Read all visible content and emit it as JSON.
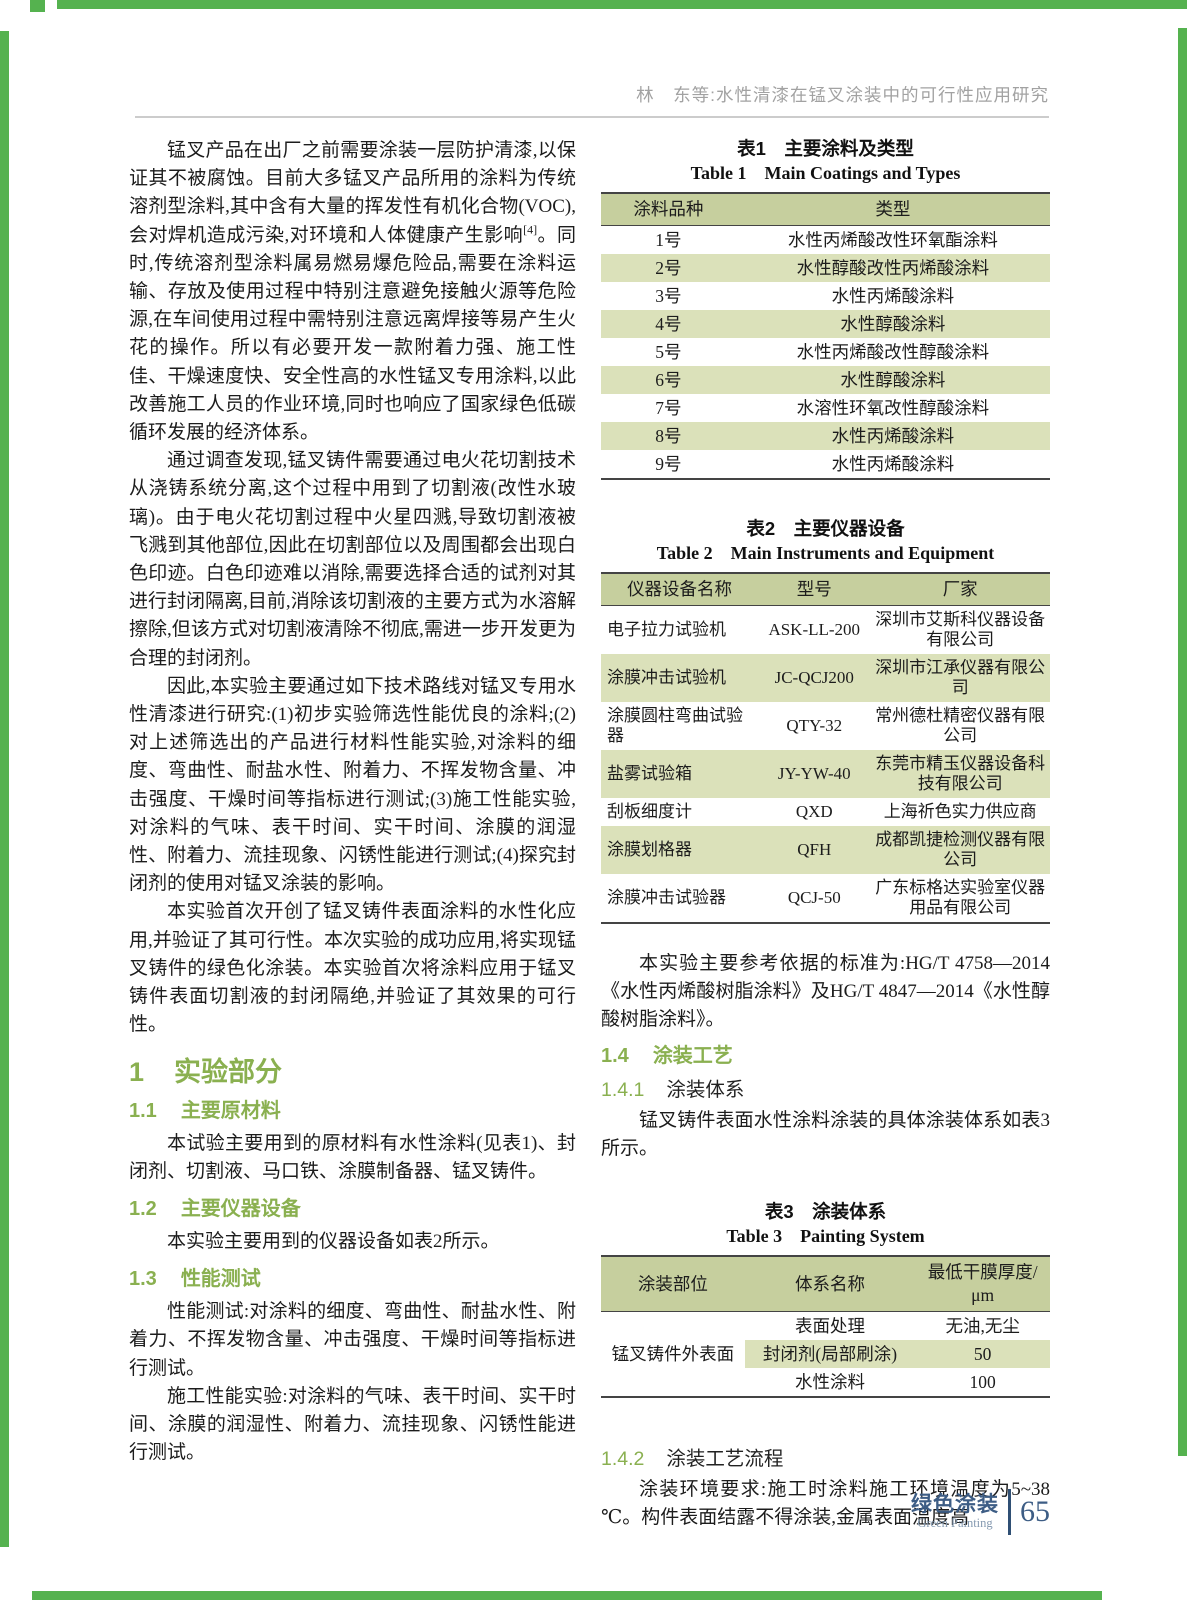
{
  "header": {
    "running_title": "林　东等:水性清漆在锰叉涂装中的可行性应用研究"
  },
  "footer": {
    "journal_cn": "绿色涂装",
    "journal_en": "Green Painting",
    "page_number": "65"
  },
  "colors": {
    "accent_green": "#8ab050",
    "table_header_bg": "#c6cf9e",
    "table_stripe_bg": "#dbe1ba",
    "frame_green": "#55b24f",
    "footer_blue": "#3d5d85"
  },
  "left_column": {
    "p1a": "锰叉产品在出厂之前需要涂装一层防护清漆,以保证其不被腐蚀。目前大多锰叉产品所用的涂料为传统溶剂型涂料,其中含有大量的挥发性有机化合物(VOC),会对焊机造成污染,对环境和人体健康产生影响",
    "p1_ref": "[4]",
    "p1b": "。同时,传统溶剂型涂料属易燃易爆危险品,需要在涂料运输、存放及使用过程中特别注意避免接触火源等危险源,在车间使用过程中需特别注意远离焊接等易产生火花的操作。所以有必要开发一款附着力强、施工性佳、干燥速度快、安全性高的水性锰叉专用涂料,以此改善施工人员的作业环境,同时也响应了国家绿色低碳循环发展的经济体系。",
    "p2": "通过调查发现,锰叉铸件需要通过电火花切割技术从浇铸系统分离,这个过程中用到了切割液(改性水玻璃)。由于电火花切割过程中火星四溅,导致切割液被飞溅到其他部位,因此在切割部位以及周围都会出现白色印迹。白色印迹难以消除,需要选择合适的试剂对其进行封闭隔离,目前,消除该切割液的主要方式为水溶解擦除,但该方式对切割液清除不彻底,需进一步开发更为合理的封闭剂。",
    "p3": "因此,本实验主要通过如下技术路线对锰叉专用水性清漆进行研究:(1)初步实验筛选性能优良的涂料;(2)对上述筛选出的产品进行材料性能实验,对涂料的细度、弯曲性、耐盐水性、附着力、不挥发物含量、冲击强度、干燥时间等指标进行测试;(3)施工性能实验,对涂料的气味、表干时间、实干时间、涂膜的润湿性、附着力、流挂现象、闪锈性能进行测试;(4)探究封闭剂的使用对锰叉涂装的影响。",
    "p4": "本实验首次开创了锰叉铸件表面涂料的水性化应用,并验证了其可行性。本次实验的成功应用,将实现锰叉铸件的绿色化涂装。本实验首次将涂料应用于锰叉铸件表面切割液的封闭隔绝,并验证了其效果的可行性。",
    "section1": {
      "number": "1",
      "title": "实验部分"
    },
    "s11": {
      "number": "1.1",
      "title": "主要原材料",
      "body": "本试验主要用到的原材料有水性涂料(见表1)、封闭剂、切割液、马口铁、涂膜制备器、锰叉铸件。"
    },
    "s12": {
      "number": "1.2",
      "title": "主要仪器设备",
      "body": "本实验主要用到的仪器设备如表2所示。"
    },
    "s13": {
      "number": "1.3",
      "title": "性能测试",
      "body1": "性能测试:对涂料的细度、弯曲性、耐盐水性、附着力、不挥发物含量、冲击强度、干燥时间等指标进行测试。",
      "body2": "施工性能实验:对涂料的气味、表干时间、实干时间、涂膜的润湿性、附着力、流挂现象、闪锈性能进行测试。"
    }
  },
  "right_column": {
    "table1": {
      "caption_cn": "表1　主要涂料及类型",
      "caption_en": "Table 1　Main Coatings and Types",
      "headers": [
        "涂料品种",
        "类型"
      ],
      "rows": [
        [
          "1号",
          "水性丙烯酸改性环氧酯涂料"
        ],
        [
          "2号",
          "水性醇酸改性丙烯酸涂料"
        ],
        [
          "3号",
          "水性丙烯酸涂料"
        ],
        [
          "4号",
          "水性醇酸涂料"
        ],
        [
          "5号",
          "水性丙烯酸改性醇酸涂料"
        ],
        [
          "6号",
          "水性醇酸涂料"
        ],
        [
          "7号",
          "水溶性环氧改性醇酸涂料"
        ],
        [
          "8号",
          "水性丙烯酸涂料"
        ],
        [
          "9号",
          "水性丙烯酸涂料"
        ]
      ]
    },
    "table2": {
      "caption_cn": "表2　主要仪器设备",
      "caption_en": "Table 2　Main Instruments and Equipment",
      "headers": [
        "仪器设备名称",
        "型号",
        "厂家"
      ],
      "rows": [
        [
          "电子拉力试验机",
          "ASK-LL-200",
          "深圳市艾斯科仪器设备有限公司"
        ],
        [
          "涂膜冲击试验机",
          "JC-QCJ200",
          "深圳市江承仪器有限公司"
        ],
        [
          "涂膜圆柱弯曲试验器",
          "QTY-32",
          "常州德杜精密仪器有限公司"
        ],
        [
          "盐雾试验箱",
          "JY-YW-40",
          "东莞市精玉仪器设备科技有限公司"
        ],
        [
          "刮板细度计",
          "QXD",
          "上海祈色实力供应商"
        ],
        [
          "涂膜划格器",
          "QFH",
          "成都凯捷检测仪器有限公司"
        ],
        [
          "涂膜冲击试验器",
          "QCJ-50",
          "广东标格达实验室仪器用品有限公司"
        ]
      ]
    },
    "standards_paragraph": "本实验主要参考依据的标准为:HG/T 4758—2014《水性丙烯酸树脂涂料》及HG/T 4847—2014《水性醇酸树脂涂料》。",
    "s14": {
      "number": "1.4",
      "title": "涂装工艺"
    },
    "s141": {
      "number": "1.4.1",
      "title": "涂装体系",
      "body": "锰叉铸件表面水性涂料涂装的具体涂装体系如表3所示。"
    },
    "table3": {
      "caption_cn": "表3　涂装体系",
      "caption_en": "Table 3　Painting System",
      "headers": [
        "涂装部位",
        "体系名称",
        "最低干膜厚度/μm"
      ],
      "merged_cell": "锰叉铸件外表面",
      "rows": [
        [
          "表面处理",
          "无油,无尘"
        ],
        [
          "封闭剂(局部刷涂)",
          "50"
        ],
        [
          "水性涂料",
          "100"
        ]
      ]
    },
    "s142": {
      "number": "1.4.2",
      "title": "涂装工艺流程",
      "body": "涂装环境要求:施工时涂料施工环境温度为5~38 ℃。构件表面结露不得涂装,金属表面温度高"
    }
  }
}
